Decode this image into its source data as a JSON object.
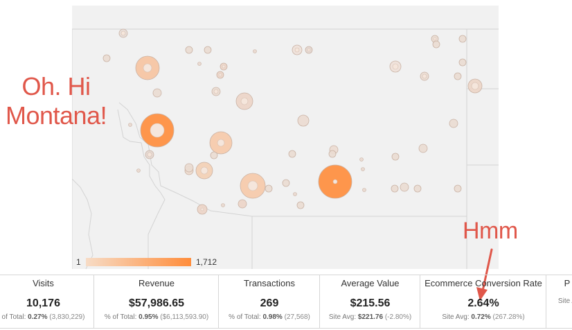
{
  "annotations": {
    "montana_line1": "Oh. Hi",
    "montana_line2": "Montana!",
    "hmm": "Hmm"
  },
  "legend": {
    "min_label": "1",
    "max_label": "1,712",
    "color_low": "#f7dcc6",
    "color_high": "#ff8c3a"
  },
  "metrics": [
    {
      "title": "Visits",
      "value": "10,176",
      "sub_prefix": "of Total:",
      "sub_bold": "0.27%",
      "sub_paren": "(3,830,229)"
    },
    {
      "title": "Revenue",
      "value": "$57,986.65",
      "sub_prefix": "% of Total:",
      "sub_bold": "0.95%",
      "sub_paren": "($6,113,593.90)"
    },
    {
      "title": "Transactions",
      "value": "269",
      "sub_prefix": "% of Total:",
      "sub_bold": "0.98%",
      "sub_paren": "(27,568)"
    },
    {
      "title": "Average Value",
      "value": "$215.56",
      "sub_prefix": "Site Avg:",
      "sub_bold": "$221.76",
      "sub_paren": "(-2.80%)"
    },
    {
      "title": "Ecommerce Conversion Rate",
      "value": "2.64%",
      "sub_prefix": "Site Avg:",
      "sub_bold": "0.72%",
      "sub_paren": "(267.28%)"
    },
    {
      "title": "P",
      "value": "",
      "sub_prefix": "Site A",
      "sub_bold": "",
      "sub_paren": ""
    }
  ],
  "map_bubbles": [
    {
      "city": "c1",
      "size": 1712
    },
    {
      "city": "c2",
      "size": 1650
    },
    {
      "city": "c3",
      "size": 720
    },
    {
      "city": "c4",
      "size": 690
    },
    {
      "city": "c5",
      "size": 640
    },
    {
      "city": "c6",
      "size": 520
    },
    {
      "city": "c7",
      "size": 400
    }
  ],
  "colors": {
    "map_bg": "#f1f1f1",
    "border": "#d6d6d6",
    "annotation": "#e0574a"
  }
}
